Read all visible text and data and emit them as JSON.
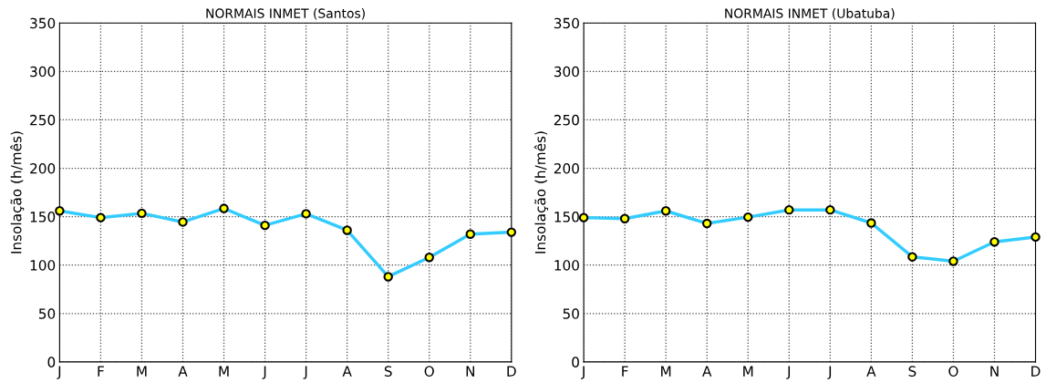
{
  "chart_data": [
    {
      "type": "line",
      "title": "NORMAIS INMET (Santos)",
      "ylabel": "Insolação (h/mês)",
      "categories": [
        "J",
        "F",
        "M",
        "A",
        "M",
        "J",
        "J",
        "A",
        "S",
        "O",
        "N",
        "D"
      ],
      "series": [
        {
          "color": "#33ccff",
          "values": [
            156,
            149,
            153.5,
            144.5,
            158.5,
            141,
            153,
            136,
            88,
            108,
            132,
            134
          ]
        }
      ],
      "ylim": [
        0,
        350
      ],
      "yticks": [
        0,
        50,
        100,
        150,
        200,
        250,
        300,
        350
      ],
      "grid": true,
      "marker": "circle",
      "line_style": "solid"
    },
    {
      "type": "line",
      "title": "NORMAIS INMET (Ubatuba)",
      "ylabel": "Insolação (h/mês)",
      "categories": [
        "J",
        "F",
        "M",
        "A",
        "M",
        "J",
        "J",
        "A",
        "S",
        "O",
        "N",
        "D"
      ],
      "series": [
        {
          "color": "#33ccff",
          "values": [
            149,
            148,
            156,
            143,
            149.5,
            157,
            157,
            143.5,
            108.5,
            104,
            124,
            129
          ]
        }
      ],
      "ylim": [
        0,
        350
      ],
      "yticks": [
        0,
        50,
        100,
        150,
        200,
        250,
        300,
        350
      ],
      "grid": true,
      "marker": "circle",
      "line_style": "solid"
    }
  ]
}
